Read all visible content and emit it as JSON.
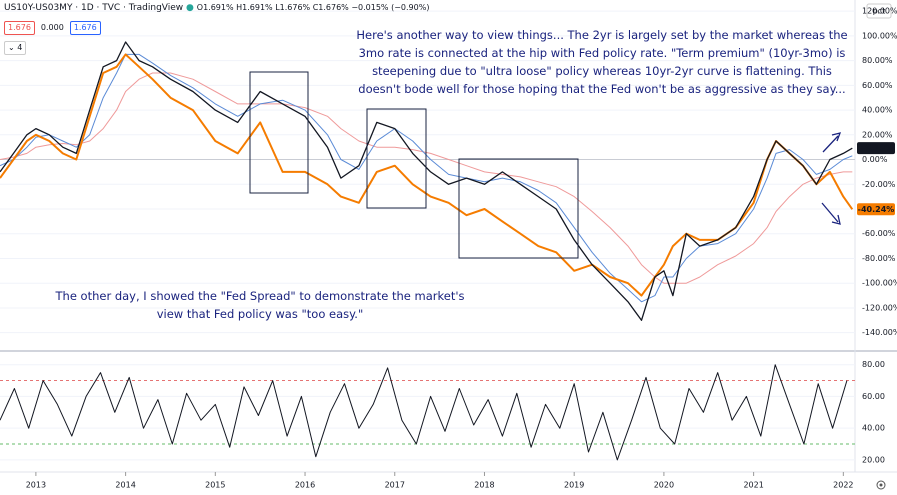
{
  "header": {
    "symbol": "US10Y-US03MY · 1D · TVC · TradingView",
    "ohlc": "O1.691% H1.691% L1.676% C1.676% −0.015% (−0.90%)",
    "box1": "1.676",
    "box2": "0.000",
    "box3": "1.676",
    "indicator_count": "4",
    "unit": "pct"
  },
  "annotations": {
    "main": "Here's another way to view things... The 2yr is largely set by the market whereas the 3mo rate is connected at the hip with Fed policy rate. \"Term premium\" (10yr-3mo) is steepening due to \"ultra loose\" policy whereas 10yr-2yr curve is flattening. This doesn't bode well for those hoping that the Fed won't be as aggressive as they say...",
    "side": "The other day, I showed the \"Fed Spread\" to demonstrate the market's view that Fed policy was \"too easy.\""
  },
  "chart_data": [
    {
      "type": "line",
      "x": [
        2012.6,
        2012.75,
        2012.9,
        2013.0,
        2013.15,
        2013.3,
        2013.45,
        2013.6,
        2013.75,
        2013.9,
        2014.0,
        2014.15,
        2014.3,
        2014.5,
        2014.75,
        2015.0,
        2015.25,
        2015.5,
        2015.75,
        2016.0,
        2016.25,
        2016.4,
        2016.6,
        2016.8,
        2017.0,
        2017.2,
        2017.4,
        2017.6,
        2017.8,
        2018.0,
        2018.2,
        2018.4,
        2018.6,
        2018.8,
        2019.0,
        2019.2,
        2019.4,
        2019.6,
        2019.75,
        2019.9,
        2020.0,
        2020.1,
        2020.25,
        2020.4,
        2020.6,
        2020.8,
        2021.0,
        2021.15,
        2021.25,
        2021.4,
        2021.55,
        2021.7,
        2021.85,
        2022.0,
        2022.1
      ],
      "series": [
        {
          "color": "#ef9a9a",
          "width": 1,
          "values": [
            0,
            2,
            5,
            10,
            12,
            13,
            12,
            15,
            25,
            40,
            55,
            65,
            70,
            70,
            65,
            55,
            45,
            45,
            45,
            42,
            35,
            25,
            15,
            10,
            10,
            8,
            5,
            0,
            -5,
            -10,
            -12,
            -14,
            -18,
            -22,
            -30,
            -42,
            -55,
            -70,
            -85,
            -95,
            -100,
            -100,
            -100,
            -95,
            -85,
            -78,
            -68,
            -55,
            -42,
            -30,
            -20,
            -15,
            -12,
            -10,
            -10
          ]
        },
        {
          "color": "#5b8bd6",
          "width": 1,
          "values": [
            -5,
            0,
            10,
            18,
            20,
            15,
            10,
            20,
            50,
            70,
            85,
            85,
            78,
            68,
            58,
            45,
            35,
            45,
            48,
            40,
            20,
            0,
            -8,
            15,
            25,
            15,
            0,
            -12,
            -15,
            -18,
            -15,
            -18,
            -25,
            -35,
            -55,
            -75,
            -92,
            -105,
            -115,
            -110,
            -95,
            -95,
            -80,
            -70,
            -68,
            -60,
            -40,
            -15,
            5,
            8,
            0,
            -12,
            -8,
            0,
            3
          ]
        },
        {
          "color": "#f57c00",
          "width": 2,
          "last_label": "-40.24%",
          "values": [
            -15,
            0,
            15,
            20,
            15,
            5,
            0,
            35,
            70,
            75,
            85,
            75,
            65,
            50,
            40,
            15,
            5,
            30,
            -10,
            -10,
            -20,
            -30,
            -35,
            -10,
            -5,
            -20,
            -30,
            -35,
            -45,
            -40,
            -50,
            -60,
            -70,
            -75,
            -90,
            -85,
            -95,
            -100,
            -110,
            -95,
            -85,
            -70,
            -60,
            -65,
            -65,
            -55,
            -35,
            0,
            15,
            5,
            -5,
            -20,
            -10,
            -30,
            -40.24
          ]
        },
        {
          "color": "#131722",
          "width": 1.3,
          "last_label": "+9.19%",
          "values": [
            -10,
            5,
            20,
            25,
            20,
            10,
            5,
            40,
            75,
            80,
            95,
            80,
            75,
            65,
            55,
            40,
            30,
            55,
            45,
            35,
            10,
            -15,
            -5,
            30,
            25,
            5,
            -10,
            -20,
            -15,
            -20,
            -10,
            -20,
            -30,
            -40,
            -65,
            -85,
            -100,
            -115,
            -130,
            -95,
            -90,
            -110,
            -60,
            -70,
            -65,
            -55,
            -30,
            0,
            15,
            5,
            -5,
            -20,
            0,
            5,
            9.19
          ]
        }
      ],
      "xlim": [
        2012.6,
        2022.13
      ],
      "ylim": [
        -154,
        129
      ],
      "yticks": [
        {
          "value": 120,
          "label": "120.00%"
        },
        {
          "value": 100,
          "label": "100.00%"
        },
        {
          "value": 80,
          "label": "80.00%"
        },
        {
          "value": 60,
          "label": "60.00%"
        },
        {
          "value": 40,
          "label": "40.00%"
        },
        {
          "value": 20,
          "label": "20.00%"
        },
        {
          "value": 0,
          "label": "0.00%"
        },
        {
          "value": -20,
          "label": "-20.00%"
        },
        {
          "value": -40,
          "label": "-40.00%"
        },
        {
          "value": -60,
          "label": "-60.00%"
        },
        {
          "value": -80,
          "label": "-80.00%"
        },
        {
          "value": -100,
          "label": "-100.00%"
        },
        {
          "value": -120,
          "label": "-120.00%"
        },
        {
          "value": -140,
          "label": "-140.00%"
        }
      ]
    },
    {
      "type": "line",
      "x": [
        2012.6,
        2012.76,
        2012.92,
        2013.08,
        2013.24,
        2013.4,
        2013.56,
        2013.72,
        2013.88,
        2014.04,
        2014.2,
        2014.36,
        2014.52,
        2014.68,
        2014.84,
        2015.0,
        2015.16,
        2015.32,
        2015.48,
        2015.64,
        2015.8,
        2015.96,
        2016.12,
        2016.28,
        2016.44,
        2016.6,
        2016.76,
        2016.92,
        2017.08,
        2017.24,
        2017.4,
        2017.56,
        2017.72,
        2017.88,
        2018.04,
        2018.2,
        2018.36,
        2018.52,
        2018.68,
        2018.84,
        2019.0,
        2019.16,
        2019.32,
        2019.48,
        2019.64,
        2019.8,
        2019.96,
        2020.12,
        2020.28,
        2020.44,
        2020.6,
        2020.76,
        2020.92,
        2021.08,
        2021.24,
        2021.4,
        2021.56,
        2021.72,
        2021.88,
        2022.04
      ],
      "series": [
        {
          "color": "#131722",
          "width": 1,
          "values": [
            45,
            65,
            40,
            70,
            55,
            35,
            60,
            75,
            50,
            72,
            40,
            58,
            30,
            62,
            45,
            55,
            28,
            66,
            48,
            70,
            35,
            60,
            22,
            50,
            68,
            40,
            55,
            78,
            45,
            30,
            60,
            38,
            65,
            42,
            58,
            35,
            62,
            28,
            55,
            40,
            68,
            25,
            50,
            20,
            45,
            72,
            40,
            30,
            65,
            50,
            75,
            45,
            60,
            35,
            80,
            55,
            30,
            68,
            40,
            70
          ]
        }
      ],
      "levels": [
        {
          "value": 70,
          "color": "#e57373"
        },
        {
          "value": 30,
          "color": "#66bb6a"
        }
      ],
      "xlim": [
        2012.6,
        2022.13
      ],
      "ylim": [
        13,
        88
      ],
      "yticks": [
        {
          "value": 80,
          "label": "80.00"
        },
        {
          "value": 60,
          "label": "60.00"
        },
        {
          "value": 40,
          "label": "40.00"
        },
        {
          "value": 20,
          "label": "20.00"
        }
      ],
      "xticks": [
        2013,
        2014,
        2015,
        2016,
        2017,
        2018,
        2019,
        2020,
        2021,
        2022
      ]
    }
  ]
}
